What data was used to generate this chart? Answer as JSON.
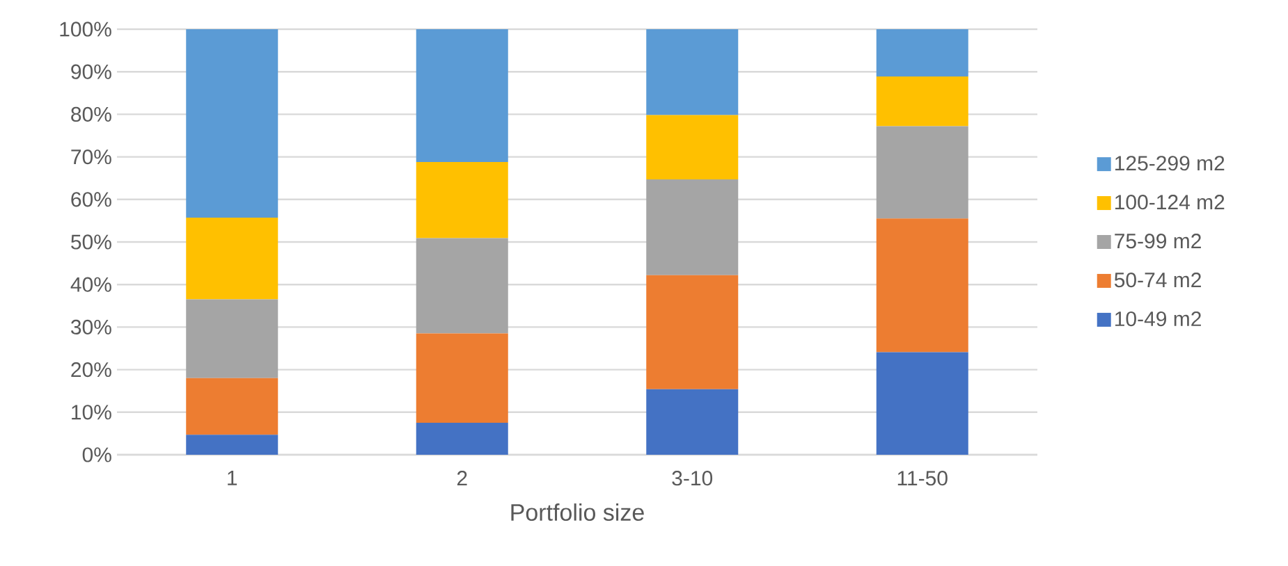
{
  "chart_data": {
    "type": "bar",
    "stacked": true,
    "xlabel": "Portfolio size",
    "categories": [
      "1",
      "2",
      "3-10",
      "11-50"
    ],
    "series": [
      {
        "name": "10-49 m2",
        "color": "#4472c4",
        "values": [
          4.7,
          7.5,
          15.4,
          24.1
        ]
      },
      {
        "name": "50-74 m2",
        "color": "#ed7d31",
        "values": [
          13.3,
          21.0,
          26.8,
          31.4
        ]
      },
      {
        "name": "75-99 m2",
        "color": "#a5a5a5",
        "values": [
          18.5,
          22.4,
          22.5,
          21.7
        ]
      },
      {
        "name": "100-124 m2",
        "color": "#ffc000",
        "values": [
          19.2,
          17.9,
          15.1,
          11.7
        ]
      },
      {
        "name": "125-299 m2",
        "color": "#5b9bd5",
        "values": [
          44.3,
          31.2,
          20.2,
          11.1
        ]
      }
    ],
    "ylim": [
      0,
      100
    ],
    "yticks": [
      {
        "value": 0,
        "label": "0%"
      },
      {
        "value": 10,
        "label": "10%"
      },
      {
        "value": 20,
        "label": "20%"
      },
      {
        "value": 30,
        "label": "30%"
      },
      {
        "value": 40,
        "label": "40%"
      },
      {
        "value": 50,
        "label": "50%"
      },
      {
        "value": 60,
        "label": "60%"
      },
      {
        "value": 70,
        "label": "70%"
      },
      {
        "value": 80,
        "label": "80%"
      },
      {
        "value": 90,
        "label": "90%"
      },
      {
        "value": 100,
        "label": "100%"
      }
    ],
    "grid": "y",
    "legend": "right"
  }
}
